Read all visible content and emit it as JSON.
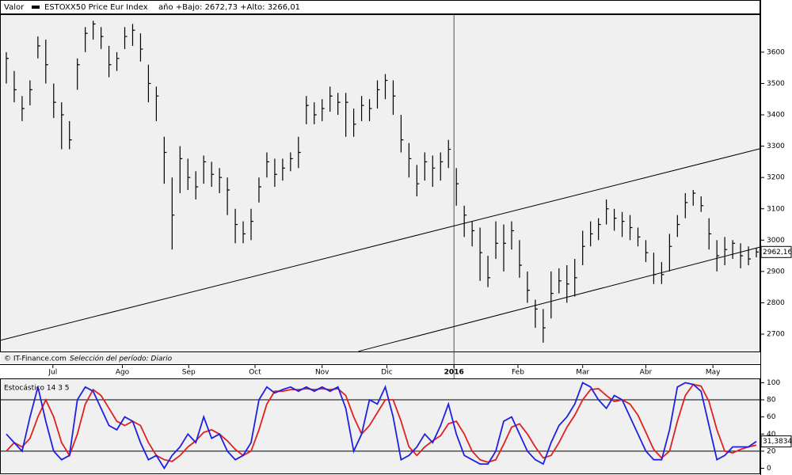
{
  "header": {
    "label": "Valor",
    "range_text": "año +Bajo: 2672,73 +Alto: 3266,01"
  },
  "footer": {
    "source": "© IT-Finance.com",
    "period": "Selección del período: Diario"
  },
  "chart_data": [
    {
      "type": "ohlc",
      "series_name": "ESTOXX50 Price Eur Index",
      "color": "#000000",
      "x": [
        0,
        1,
        2,
        3,
        4,
        5,
        6,
        7,
        8,
        9,
        10,
        11,
        12,
        13,
        14,
        15,
        16,
        17,
        18,
        19,
        20,
        21,
        22,
        23,
        24,
        25,
        26,
        27,
        28,
        29,
        30,
        31,
        32,
        33,
        34,
        35,
        36,
        37,
        38,
        39,
        40,
        41,
        42,
        43,
        44,
        45,
        46,
        47,
        48,
        49,
        50,
        51,
        52,
        53,
        54,
        55,
        56,
        57,
        58,
        59,
        60,
        61,
        62,
        63,
        64,
        65,
        66,
        67,
        68,
        69,
        70,
        71,
        72,
        73,
        74,
        75,
        76,
        77,
        78,
        79,
        80,
        81,
        82,
        83,
        84,
        85,
        86,
        87,
        88,
        89,
        90,
        91,
        92,
        93,
        94,
        95
      ],
      "high": [
        3600,
        3540,
        3460,
        3510,
        3650,
        3640,
        3500,
        3440,
        3380,
        3580,
        3680,
        3700,
        3680,
        3620,
        3600,
        3680,
        3690,
        3660,
        3560,
        3490,
        3330,
        3200,
        3300,
        3260,
        3220,
        3270,
        3250,
        3230,
        3200,
        3100,
        3060,
        3100,
        3200,
        3280,
        3260,
        3260,
        3280,
        3330,
        3460,
        3440,
        3450,
        3490,
        3470,
        3470,
        3420,
        3460,
        3450,
        3510,
        3530,
        3510,
        3400,
        3310,
        3240,
        3280,
        3270,
        3280,
        3320,
        3230,
        3110,
        3060,
        3040,
        2950,
        3060,
        3050,
        3060,
        3000,
        2900,
        2810,
        2780,
        2900,
        2910,
        2920,
        2940,
        3030,
        3060,
        3070,
        3130,
        3100,
        3090,
        3080,
        3040,
        3000,
        2960,
        2930,
        3020,
        3080,
        3150,
        3160,
        3140,
        3070,
        3000,
        3010,
        3000,
        2990,
        2980,
        2975
      ],
      "low": [
        3500,
        3440,
        3380,
        3430,
        3580,
        3500,
        3390,
        3290,
        3290,
        3480,
        3600,
        3640,
        3610,
        3520,
        3540,
        3610,
        3620,
        3570,
        3440,
        3380,
        3180,
        2970,
        3150,
        3160,
        3130,
        3180,
        3170,
        3150,
        3080,
        2990,
        2990,
        3000,
        3120,
        3200,
        3170,
        3190,
        3220,
        3230,
        3370,
        3370,
        3380,
        3410,
        3400,
        3330,
        3330,
        3380,
        3380,
        3420,
        3450,
        3400,
        3280,
        3200,
        3140,
        3190,
        3170,
        3190,
        3230,
        3110,
        3010,
        2980,
        2870,
        2850,
        2940,
        2900,
        2970,
        2880,
        2800,
        2720,
        2672.73,
        2750,
        2830,
        2800,
        2820,
        2920,
        2980,
        3000,
        3050,
        3030,
        3010,
        3000,
        2980,
        2930,
        2860,
        2860,
        2900,
        3010,
        3070,
        3110,
        3090,
        2970,
        2900,
        2920,
        2940,
        2910,
        2920,
        2945
      ],
      "close": [
        3580,
        3480,
        3420,
        3480,
        3620,
        3560,
        3440,
        3400,
        3320,
        3560,
        3660,
        3690,
        3650,
        3560,
        3580,
        3650,
        3670,
        3610,
        3500,
        3460,
        3280,
        3080,
        3260,
        3200,
        3170,
        3250,
        3210,
        3200,
        3160,
        3050,
        3020,
        3060,
        3170,
        3250,
        3210,
        3230,
        3260,
        3280,
        3430,
        3400,
        3420,
        3460,
        3440,
        3440,
        3370,
        3430,
        3420,
        3480,
        3510,
        3460,
        3320,
        3260,
        3180,
        3250,
        3230,
        3250,
        3290,
        3180,
        3080,
        3030,
        2960,
        2880,
        2990,
        2990,
        3030,
        2920,
        2840,
        2780,
        2720,
        2830,
        2870,
        2860,
        2880,
        2980,
        3020,
        3050,
        3100,
        3070,
        3060,
        3040,
        3010,
        2960,
        2890,
        2890,
        2980,
        3050,
        3120,
        3150,
        3110,
        3020,
        2950,
        2970,
        2990,
        2950,
        2940,
        2962.16
      ],
      "last_label": "2962,16",
      "trendlines": [
        {
          "x": [
            -0.8,
            95.5
          ],
          "y": [
            2680,
            3292
          ]
        },
        {
          "x": [
            44.6,
            95.5
          ],
          "y": [
            2645,
            2978
          ]
        }
      ],
      "xlim": [
        -0.8,
        95.5
      ],
      "xticks": [
        {
          "value": 5.9,
          "label": "Jul"
        },
        {
          "value": 14.7,
          "label": "Ago"
        },
        {
          "value": 23.1,
          "label": "Sep"
        },
        {
          "value": 31.5,
          "label": "Oct"
        },
        {
          "value": 40.0,
          "label": "Nov"
        },
        {
          "value": 48.2,
          "label": "Dic"
        },
        {
          "value": 56.7,
          "label": "2016"
        },
        {
          "value": 64.8,
          "label": "Feb"
        },
        {
          "value": 73.0,
          "label": "Mar"
        },
        {
          "value": 81.0,
          "label": "Abr"
        },
        {
          "value": 89.5,
          "label": "May"
        }
      ],
      "year_tick": {
        "value": 56.7
      },
      "ylim": [
        2642,
        3721
      ],
      "yticks": [
        2700,
        2800,
        2900,
        3000,
        3100,
        3200,
        3300,
        3400,
        3500,
        3600
      ]
    },
    {
      "type": "line",
      "title": "Estocástico 14 3 5",
      "x": [
        0,
        1,
        2,
        3,
        4,
        5,
        6,
        7,
        8,
        9,
        10,
        11,
        12,
        13,
        14,
        15,
        16,
        17,
        18,
        19,
        20,
        21,
        22,
        23,
        24,
        25,
        26,
        27,
        28,
        29,
        30,
        31,
        32,
        33,
        34,
        35,
        36,
        37,
        38,
        39,
        40,
        41,
        42,
        43,
        44,
        45,
        46,
        47,
        48,
        49,
        50,
        51,
        52,
        53,
        54,
        55,
        56,
        57,
        58,
        59,
        60,
        61,
        62,
        63,
        64,
        65,
        66,
        67,
        68,
        69,
        70,
        71,
        72,
        73,
        74,
        75,
        76,
        77,
        78,
        79,
        80,
        81,
        82,
        83,
        84,
        85,
        86,
        87,
        88,
        89,
        90,
        91,
        92,
        93,
        94,
        95
      ],
      "series": [
        {
          "color": "#e02020",
          "values": [
            20,
            30,
            25,
            35,
            60,
            80,
            60,
            30,
            15,
            40,
            75,
            92,
            85,
            70,
            55,
            50,
            55,
            50,
            30,
            15,
            10,
            8,
            15,
            25,
            32,
            42,
            45,
            40,
            32,
            22,
            15,
            20,
            45,
            75,
            90,
            90,
            92,
            92,
            93,
            92,
            93,
            92,
            93,
            85,
            60,
            40,
            50,
            65,
            80,
            80,
            55,
            25,
            15,
            25,
            32,
            38,
            52,
            55,
            40,
            20,
            10,
            7,
            10,
            28,
            48,
            52,
            40,
            25,
            12,
            15,
            30,
            48,
            62,
            80,
            92,
            93,
            85,
            78,
            80,
            75,
            62,
            42,
            22,
            12,
            20,
            55,
            85,
            98,
            96,
            78,
            45,
            20,
            18,
            22,
            25,
            27
          ]
        },
        {
          "color": "#2020e0",
          "values": [
            40,
            30,
            20,
            60,
            95,
            55,
            20,
            10,
            15,
            80,
            95,
            90,
            70,
            50,
            45,
            60,
            55,
            30,
            10,
            15,
            0,
            15,
            25,
            40,
            30,
            60,
            35,
            40,
            20,
            10,
            15,
            30,
            80,
            95,
            88,
            92,
            95,
            90,
            95,
            90,
            95,
            90,
            95,
            70,
            20,
            40,
            80,
            75,
            95,
            60,
            10,
            15,
            25,
            40,
            30,
            50,
            75,
            40,
            15,
            10,
            5,
            5,
            20,
            55,
            60,
            40,
            20,
            10,
            5,
            30,
            50,
            60,
            75,
            100,
            95,
            80,
            70,
            85,
            80,
            60,
            40,
            20,
            10,
            10,
            45,
            95,
            100,
            98,
            90,
            50,
            10,
            15,
            25,
            25,
            25,
            31.3834
          ]
        }
      ],
      "last_label": "31,3834",
      "levels": [
        20,
        80
      ],
      "xlim": [
        -0.8,
        95.5
      ],
      "ylim": [
        -6,
        105
      ],
      "yticks": [
        0,
        20,
        40,
        60,
        80,
        100
      ]
    }
  ]
}
